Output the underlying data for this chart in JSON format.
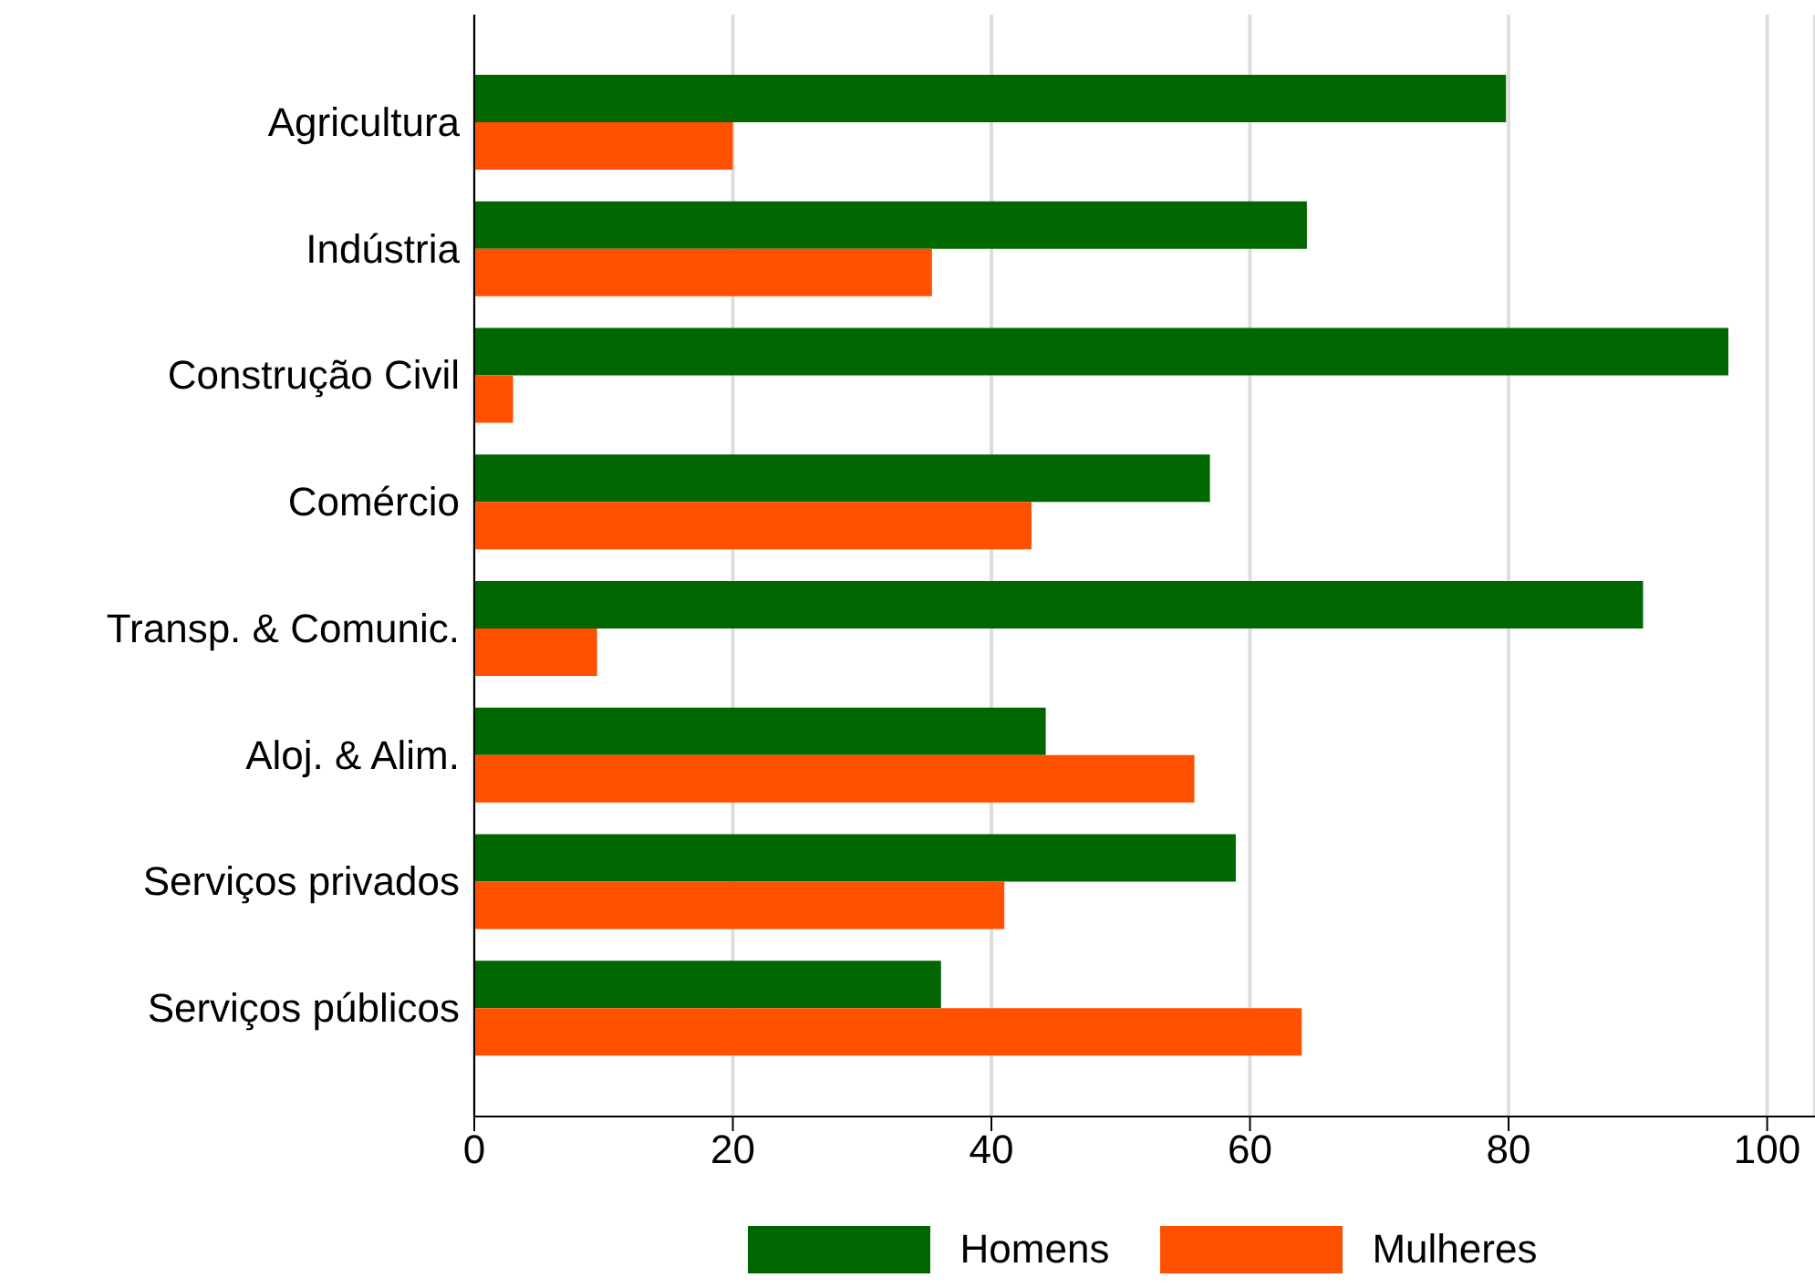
{
  "chart_data": {
    "type": "bar",
    "orientation": "horizontal",
    "categories": [
      "Agricultura",
      "Indústria",
      "Construção Civil",
      "Comércio",
      "Transp. & Comunic.",
      "Aloj. & Alim.",
      "Serviços privados",
      "Serviços públicos"
    ],
    "series": [
      {
        "name": "Homens",
        "color": "#006600",
        "values": [
          79.8,
          64.4,
          97.0,
          56.9,
          90.4,
          44.2,
          58.9,
          36.1
        ]
      },
      {
        "name": "Mulheres",
        "color": "#ff5000",
        "values": [
          20.0,
          35.4,
          3.0,
          43.1,
          9.5,
          55.7,
          41.0,
          64.0
        ]
      }
    ],
    "xlim": [
      0,
      103.7
    ],
    "xticks": [
      0,
      20,
      40,
      60,
      80,
      100
    ],
    "grid": "x",
    "legend": "bottom"
  }
}
